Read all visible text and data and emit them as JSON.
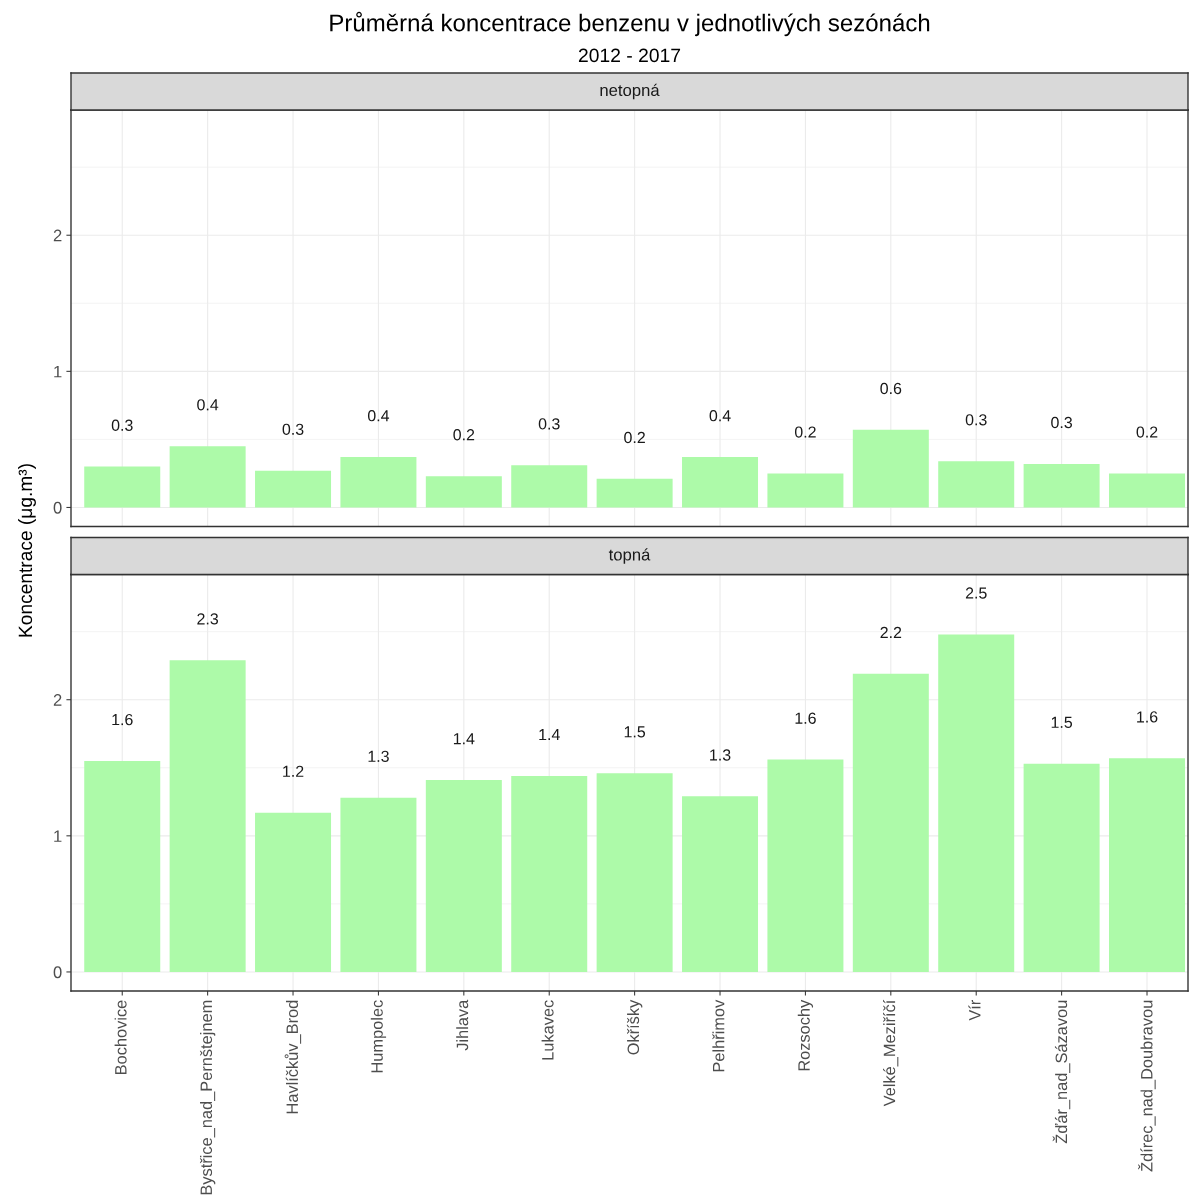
{
  "chart_data": [
    {
      "type": "bar",
      "title": "Průměrná koncentrace benzenu v jednotlivých sezónách",
      "subtitle": "2012 - 2017",
      "ylabel": "Koncentrace (μg.m³)",
      "annotations": [
        "netopná"
      ],
      "categories": [
        null,
        null,
        null,
        null,
        null,
        null,
        null,
        null,
        null,
        null,
        null,
        null,
        null
      ],
      "values": [
        0.3,
        0.45,
        0.27,
        0.37,
        0.23,
        0.31,
        0.21,
        0.37,
        0.25,
        0.57,
        0.34,
        0.32,
        0.25
      ],
      "value_labels": [
        "0.3",
        "0.4",
        "0.3",
        "0.4",
        "0.2",
        "0.3",
        "0.2",
        "0.4",
        "0.2",
        "0.6",
        "0.3",
        "0.3",
        "0.2"
      ],
      "color": "#adfaa9",
      "ylim": [
        -0.14,
        2.92
      ],
      "yticks": [
        0,
        {
          "value": 0.5,
          "label": null
        },
        1,
        {
          "value": 1.5,
          "label": null
        },
        2,
        {
          "value": 2.5,
          "label": null
        }
      ],
      "grid": true,
      "tick_labels": "y"
    },
    {
      "type": "bar",
      "annotations": [
        "topná"
      ],
      "categories": [
        "Bochovice",
        "Bystřice_nad_Pernštejnem",
        "Havlíčkův_Brod",
        "Humpolec",
        "Jihlava",
        "Lukavec",
        "Okříšky",
        "Pelhřimov",
        "Rozsochy",
        "Velké_Meziříčí",
        "Vír",
        "Žďár_nad_Sázavou",
        "Ždírec_nad_Doubravou"
      ],
      "values": [
        1.55,
        2.29,
        1.17,
        1.28,
        1.41,
        1.44,
        1.46,
        1.29,
        1.56,
        2.19,
        2.48,
        1.53,
        1.57
      ],
      "value_labels": [
        "1.6",
        "2.3",
        "1.2",
        "1.3",
        "1.4",
        "1.4",
        "1.5",
        "1.3",
        "1.6",
        "2.2",
        "2.5",
        "1.5",
        "1.6"
      ],
      "color": "#adfaa9",
      "ylim": [
        -0.14,
        2.92
      ],
      "yticks": [
        0,
        {
          "value": 0.5,
          "label": null
        },
        1,
        {
          "value": 1.5,
          "label": null
        },
        2,
        {
          "value": 2.5,
          "label": null
        }
      ],
      "grid": true
    }
  ]
}
